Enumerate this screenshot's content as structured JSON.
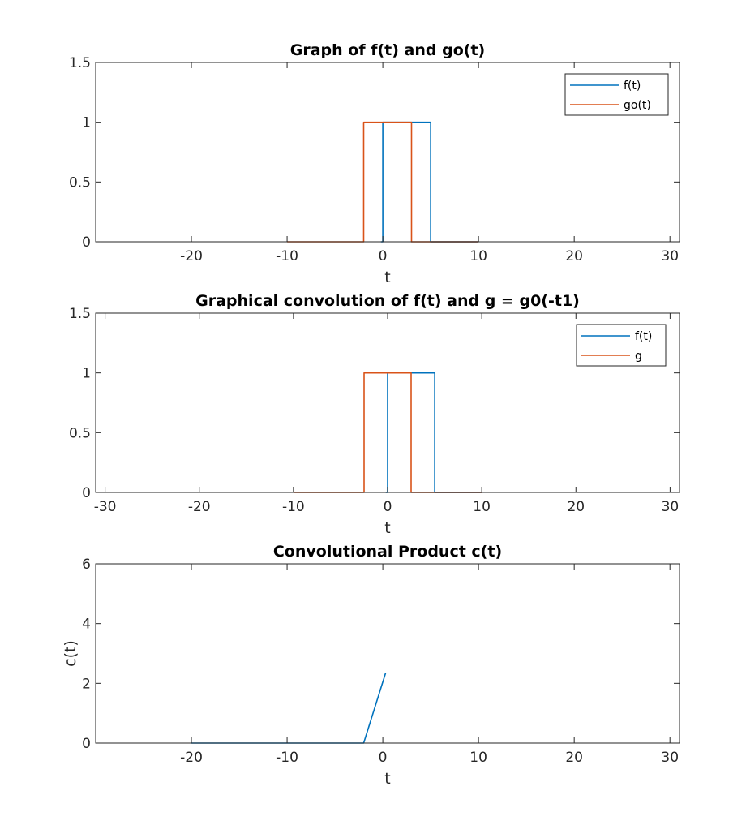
{
  "colors": {
    "series1": "#0072BD",
    "series2": "#D95319"
  },
  "chart_data": [
    {
      "type": "line",
      "title": "Graph of f(t) and go(t)",
      "xlabel": "t",
      "ylabel": "",
      "xlim": [
        -30,
        31
      ],
      "ylim": [
        0,
        1.5
      ],
      "xticks": [
        -20,
        -10,
        0,
        10,
        20,
        30
      ],
      "yticks": [
        0,
        0.5,
        1,
        1.5
      ],
      "xtick_labels": [
        "-20",
        "-10",
        "0",
        "10",
        "20",
        "30"
      ],
      "ytick_labels": [
        "0",
        "0.5",
        "1",
        "1.5"
      ],
      "legend": "top-right",
      "grid": false,
      "series": [
        {
          "name": "f(t)",
          "color": "#0072BD",
          "x": [
            -0.2,
            0,
            0,
            5,
            5,
            10
          ],
          "y": [
            0,
            0,
            1,
            1,
            0,
            0
          ]
        },
        {
          "name": "go(t)",
          "color": "#D95319",
          "x": [
            -10,
            -2,
            -2,
            3,
            3,
            10
          ],
          "y": [
            0,
            0,
            1,
            1,
            0,
            0
          ]
        }
      ]
    },
    {
      "type": "line",
      "title": "Graphical convolution of f(t) and g = g0(-t1)",
      "xlabel": "t",
      "ylabel": "",
      "xlim": [
        -31,
        31
      ],
      "ylim": [
        0,
        1.5
      ],
      "xticks": [
        -30,
        -20,
        -10,
        0,
        10,
        20,
        30
      ],
      "yticks": [
        0,
        0.5,
        1,
        1.5
      ],
      "xtick_labels": [
        "-30",
        "-20",
        "-10",
        "0",
        "10",
        "20",
        "30"
      ],
      "ytick_labels": [
        "0",
        "0.5",
        "1",
        "1.5"
      ],
      "legend": "top-right",
      "grid": false,
      "series": [
        {
          "name": "f(t)",
          "color": "#0072BD",
          "x": [
            -0.2,
            0,
            0,
            5,
            5,
            10
          ],
          "y": [
            0,
            0,
            1,
            1,
            0,
            0
          ]
        },
        {
          "name": "g",
          "color": "#D95319",
          "x": [
            -10,
            -2.5,
            -2.5,
            2.5,
            2.5,
            10
          ],
          "y": [
            0,
            0,
            1,
            1,
            0,
            0
          ]
        }
      ]
    },
    {
      "type": "line",
      "title": "Convolutional Product c(t)",
      "xlabel": "t",
      "ylabel": "c(t)",
      "xlim": [
        -30,
        31
      ],
      "ylim": [
        0,
        6
      ],
      "xticks": [
        -20,
        -10,
        0,
        10,
        20,
        30
      ],
      "yticks": [
        0,
        2,
        4,
        6
      ],
      "xtick_labels": [
        "-20",
        "-10",
        "0",
        "10",
        "20",
        "30"
      ],
      "ytick_labels": [
        "0",
        "2",
        "4",
        "6"
      ],
      "legend": "none",
      "grid": false,
      "series": [
        {
          "name": "",
          "color": "#0072BD",
          "x": [
            -20,
            -2,
            0.3
          ],
          "y": [
            0,
            0,
            2.35
          ]
        }
      ]
    }
  ]
}
